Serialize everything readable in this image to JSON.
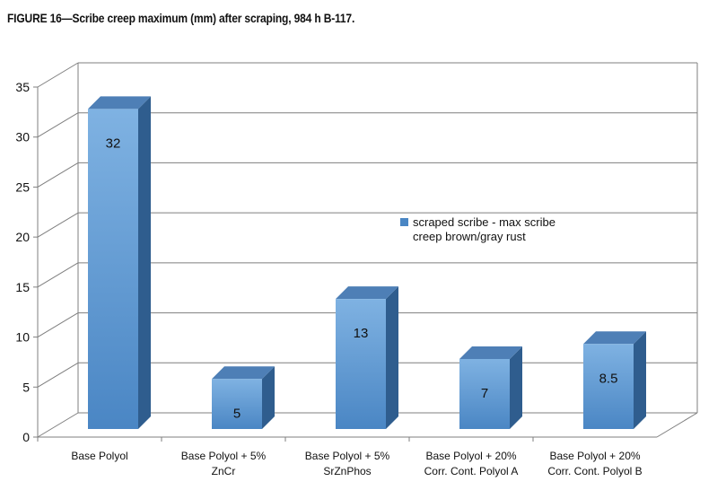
{
  "figure": {
    "title": "FIGURE 16—Scribe creep maximum (mm) after scraping, 984 h B-117."
  },
  "colors": {
    "bar_front_light": "#7aaee0",
    "bar_front_dark": "#4a86c4",
    "bar_top": "#4e7fb6",
    "bar_side": "#2f5d8e",
    "grid": "#7f7f7f",
    "axis": "#7f7f7f",
    "text": "#111111"
  },
  "chart_data": {
    "type": "bar",
    "title": "",
    "xlabel": "",
    "ylabel": "",
    "ylim": [
      0,
      35
    ],
    "yticks": [
      0,
      5,
      10,
      15,
      20,
      25,
      30,
      35
    ],
    "categories": [
      [
        "Base Polyol"
      ],
      [
        "Base Polyol + 5%",
        "ZnCr"
      ],
      [
        "Base Polyol + 5%",
        "SrZnPhos"
      ],
      [
        "Base Polyol + 20%",
        "Corr. Cont. Polyol A"
      ],
      [
        "Base Polyol + 20%",
        "Corr. Cont. Polyol B"
      ]
    ],
    "series": [
      {
        "name": "scraped scribe - max scribe creep brown/gray rust",
        "legend_lines": [
          "scraped scribe - max scribe",
          "creep brown/gray rust"
        ],
        "values": [
          32,
          5,
          13,
          7,
          8.5
        ],
        "data_labels": [
          "32",
          "5",
          "13",
          "7",
          "8.5"
        ]
      }
    ],
    "grid": true,
    "legend": "right-center",
    "style": "3d-column"
  }
}
